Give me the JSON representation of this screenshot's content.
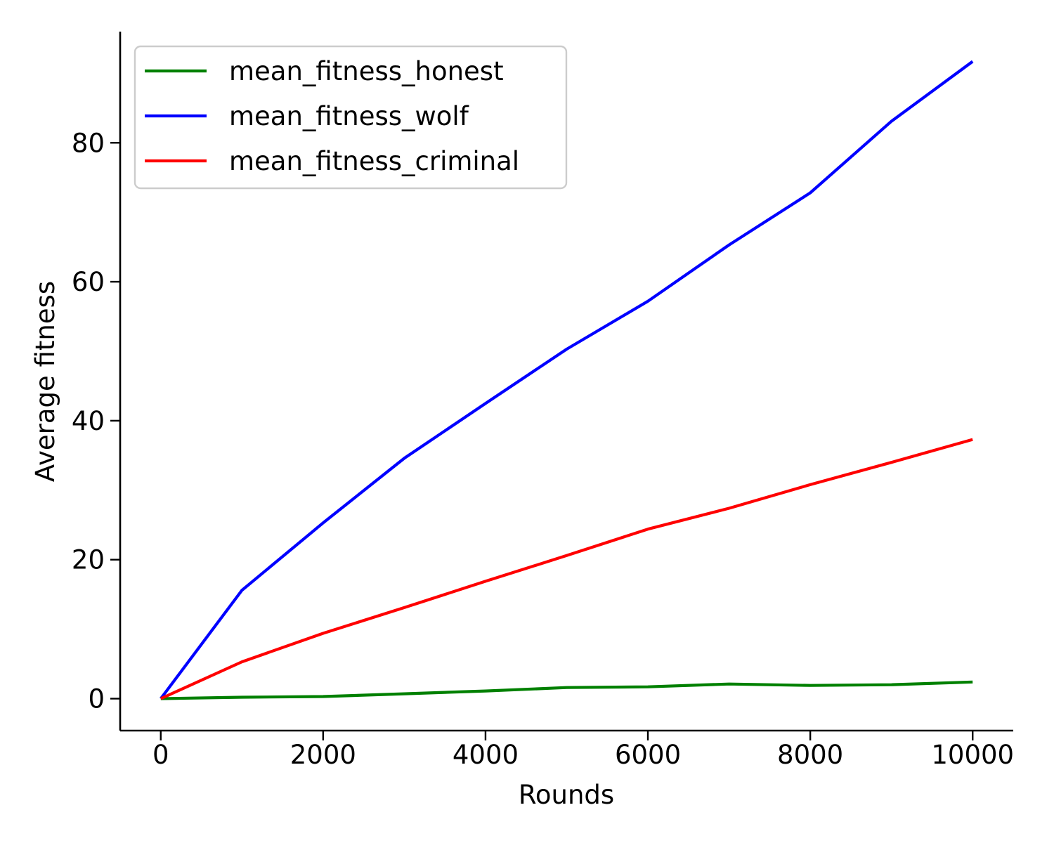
{
  "chart_data": {
    "type": "line",
    "xlabel": "Rounds",
    "ylabel": "Average fitness",
    "xlim": [
      -500,
      10500
    ],
    "ylim": [
      -4.6,
      96
    ],
    "xticks": [
      0,
      2000,
      4000,
      6000,
      8000,
      10000
    ],
    "yticks": [
      0,
      20,
      40,
      60,
      80
    ],
    "grid": false,
    "legend_position": "top-left",
    "x": [
      0,
      1000,
      2000,
      3000,
      4000,
      5000,
      6000,
      7000,
      8000,
      9000,
      10000
    ],
    "series": [
      {
        "name": "mean_fitness_honest",
        "color": "#008000",
        "values": [
          0.0,
          0.2,
          0.3,
          0.7,
          1.1,
          1.6,
          1.7,
          2.1,
          1.9,
          2.0,
          2.4
        ]
      },
      {
        "name": "mean_fitness_wolf",
        "color": "#0000ff",
        "values": [
          0.0,
          15.6,
          25.3,
          34.6,
          42.5,
          50.3,
          57.2,
          65.3,
          72.8,
          83.1,
          91.7
        ]
      },
      {
        "name": "mean_fitness_criminal",
        "color": "#ff0000",
        "values": [
          0.0,
          5.3,
          9.4,
          13.1,
          16.9,
          20.6,
          24.4,
          27.4,
          30.8,
          34.0,
          37.3
        ]
      }
    ]
  }
}
